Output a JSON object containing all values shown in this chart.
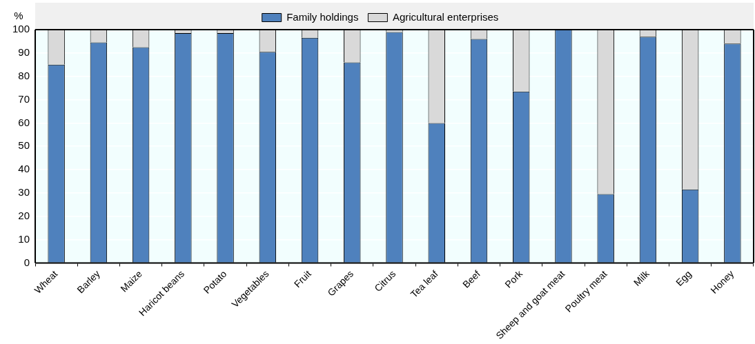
{
  "chart_data": {
    "type": "bar",
    "stacked": true,
    "ylabel": "%",
    "categories": [
      "Wheat",
      "Barley",
      "Maize",
      "Haricot beans",
      "Potato",
      "Vegetables",
      "Fruit",
      "Grapes",
      "Citrus",
      "Tea leaf",
      "Beef",
      "Pork",
      "Sheep and goat meat",
      "Poultry meat",
      "Milk",
      "Egg",
      "Honey"
    ],
    "series": [
      {
        "name": "Family holdings",
        "color": "#4f81bd",
        "values": [
          85,
          94.5,
          92.5,
          98.5,
          98.5,
          90.5,
          96.5,
          86,
          99,
          60,
          96,
          73.5,
          100,
          29.5,
          97,
          31.5,
          94
        ]
      },
      {
        "name": "Agricultural enterprises",
        "color": "#d9d9d9",
        "values": [
          15,
          5.5,
          7.5,
          1.5,
          1.5,
          9.5,
          3.5,
          14,
          1,
          40,
          4,
          26.5,
          0,
          70.5,
          3,
          68.5,
          6
        ]
      }
    ],
    "ylim": [
      0,
      100
    ],
    "yticks": [
      0,
      10,
      20,
      30,
      40,
      50,
      60,
      70,
      80,
      90,
      100
    ],
    "grid": "y",
    "legend": "top"
  }
}
